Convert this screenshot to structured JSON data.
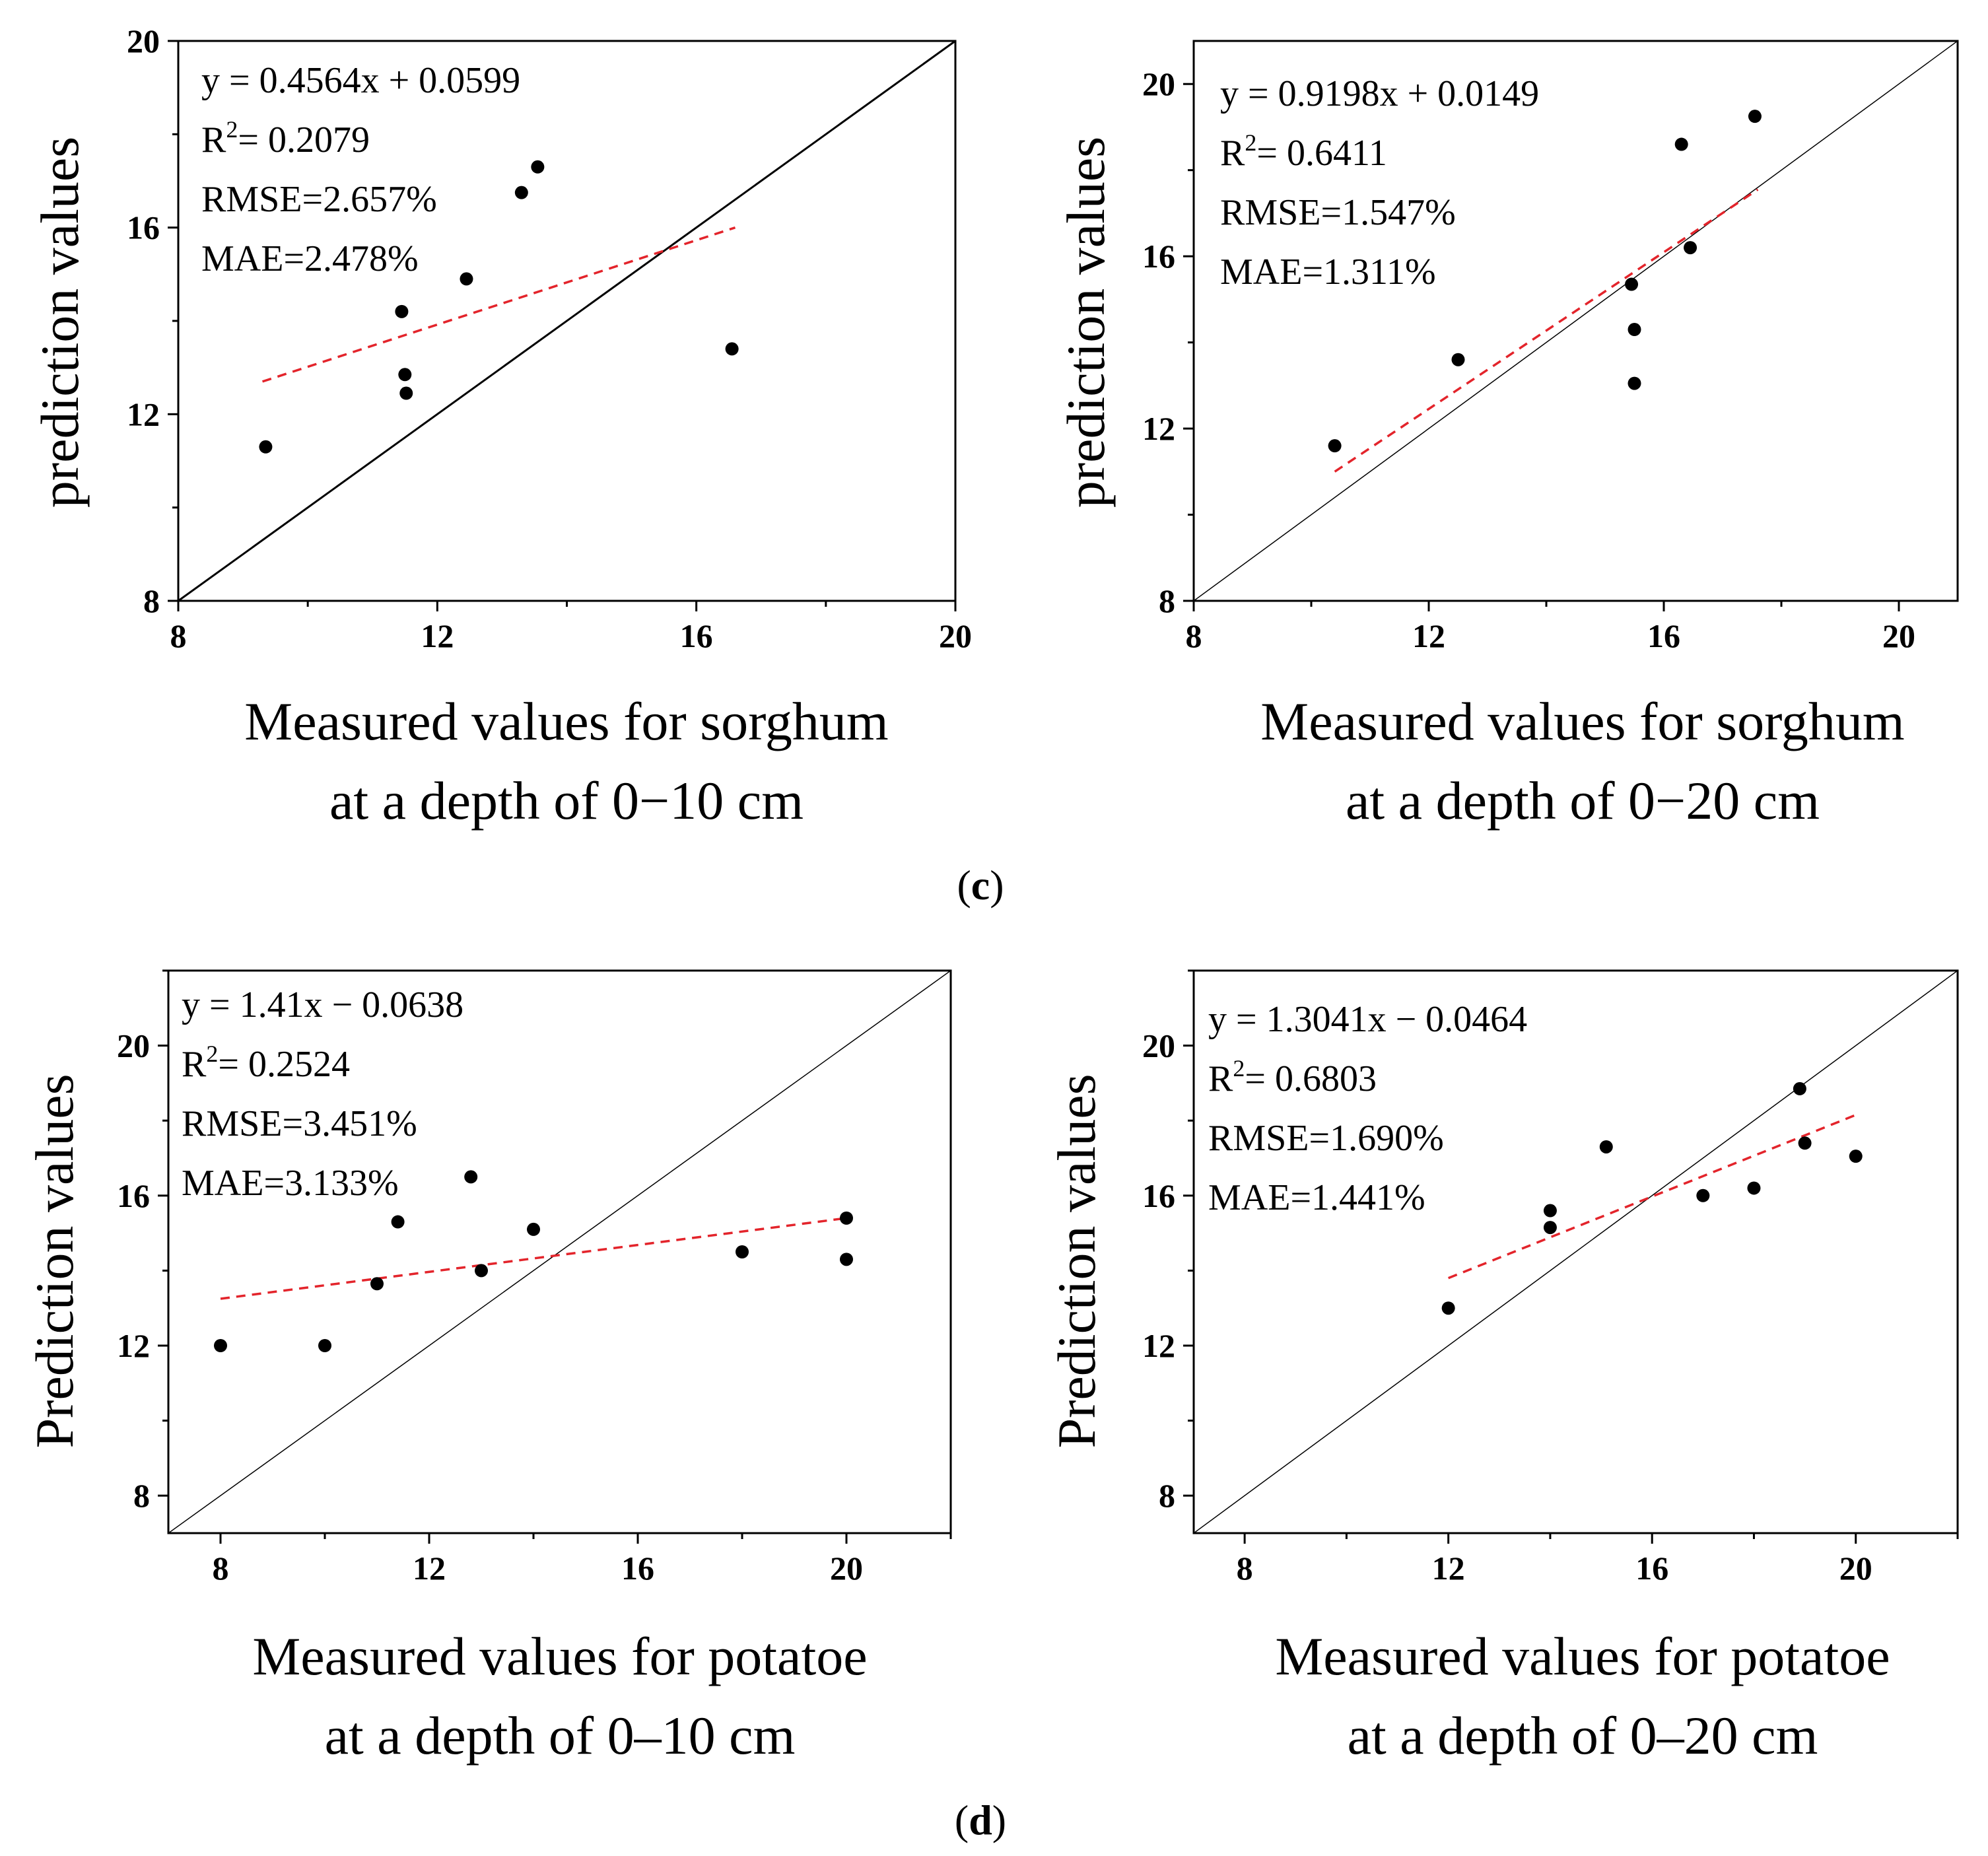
{
  "colors": {
    "fit_line": "#e3242b",
    "identity_line": "#000000",
    "points": "#000000"
  },
  "panel_labels": {
    "c": "(c)",
    "c_bold": "c",
    "d": "(d)",
    "d_bold": "d"
  },
  "chart_data": [
    {
      "type": "scatter",
      "id": "sorghum-0-10",
      "xlabel_lines": [
        "Measured values for sorghum",
        "at a depth of 0−10 cm"
      ],
      "ylabel": "prediction values",
      "xlim": [
        8,
        20
      ],
      "ylim": [
        8,
        20
      ],
      "xticks": [
        8,
        12,
        16,
        20
      ],
      "yticks": [
        8,
        12,
        16,
        20
      ],
      "identity_line": true,
      "fit_line": {
        "x": [
          9.3,
          16.6
        ],
        "y": [
          12.7,
          16.0
        ]
      },
      "points": [
        [
          9.35,
          11.3
        ],
        [
          11.45,
          14.2
        ],
        [
          11.5,
          12.85
        ],
        [
          11.52,
          12.45
        ],
        [
          12.45,
          14.9
        ],
        [
          13.3,
          16.75
        ],
        [
          13.55,
          17.3
        ],
        [
          16.55,
          13.4
        ]
      ],
      "stats": {
        "equation": "y = 0.4564x + 0.0599",
        "r2_prefix": "R",
        "r2_sup": "2",
        "r2_value": "= 0.2079",
        "rmse": "RMSE=2.657%",
        "mae": "MAE=2.478%"
      }
    },
    {
      "type": "scatter",
      "id": "sorghum-0-20",
      "xlabel_lines": [
        "Measured values for sorghum",
        "at a depth of 0−20 cm"
      ],
      "ylabel": "prediction values",
      "xlim": [
        8,
        21
      ],
      "ylim": [
        8,
        21
      ],
      "xticks": [
        8,
        12,
        16,
        20
      ],
      "yticks": [
        8,
        12,
        16,
        20
      ],
      "identity_line": true,
      "fit_line": {
        "x": [
          10.4,
          17.6
        ],
        "y": [
          11.0,
          17.55
        ]
      },
      "points": [
        [
          10.4,
          11.6
        ],
        [
          12.5,
          13.6
        ],
        [
          15.45,
          15.35
        ],
        [
          15.5,
          14.3
        ],
        [
          15.5,
          13.05
        ],
        [
          16.3,
          18.6
        ],
        [
          16.45,
          16.2
        ],
        [
          17.55,
          19.25
        ]
      ],
      "stats": {
        "equation": "y = 0.9198x + 0.0149",
        "r2_prefix": "R",
        "r2_sup": "2",
        "r2_value": "= 0.6411",
        "rmse": "RMSE=1.547%",
        "mae": "MAE=1.311%"
      }
    },
    {
      "type": "scatter",
      "id": "potatoe-0-10",
      "xlabel_lines": [
        "Measured values for potatoe",
        "at a depth of 0–10 cm"
      ],
      "ylabel": "Prediction values",
      "xlim": [
        7,
        22
      ],
      "ylim": [
        7,
        22
      ],
      "xticks": [
        8,
        12,
        16,
        20
      ],
      "yticks": [
        8,
        12,
        16,
        20
      ],
      "identity_line": true,
      "fit_line": {
        "x": [
          8,
          20
        ],
        "y": [
          13.25,
          15.4
        ]
      },
      "points": [
        [
          8,
          12
        ],
        [
          10,
          12
        ],
        [
          11,
          13.65
        ],
        [
          11.4,
          15.3
        ],
        [
          12.8,
          16.5
        ],
        [
          13,
          14
        ],
        [
          14,
          15.1
        ],
        [
          18,
          14.5
        ],
        [
          20,
          15.4
        ],
        [
          20,
          14.3
        ]
      ],
      "stats": {
        "equation": "y = 1.41x − 0.0638",
        "r2_prefix": "R",
        "r2_sup": "2",
        "r2_value": "= 0.2524",
        "rmse": "RMSE=3.451%",
        "mae": "MAE=3.133%"
      }
    },
    {
      "type": "scatter",
      "id": "potatoe-0-20",
      "xlabel_lines": [
        "Measured values for potatoe",
        "at a depth of 0–20 cm"
      ],
      "ylabel": "Prediction values",
      "xlim": [
        7,
        22
      ],
      "ylim": [
        7,
        22
      ],
      "xticks": [
        8,
        12,
        16,
        20
      ],
      "yticks": [
        8,
        12,
        16,
        20
      ],
      "identity_line": true,
      "fit_line": {
        "x": [
          12,
          20
        ],
        "y": [
          13.8,
          18.15
        ]
      },
      "points": [
        [
          12,
          13
        ],
        [
          14,
          15.6
        ],
        [
          14,
          15.15
        ],
        [
          15.1,
          17.3
        ],
        [
          17,
          16
        ],
        [
          18,
          16.2
        ],
        [
          18.9,
          18.85
        ],
        [
          19,
          17.4
        ],
        [
          20,
          17.05
        ]
      ],
      "stats": {
        "equation": "y = 1.3041x − 0.0464",
        "r2_prefix": "R",
        "r2_sup": "2",
        "r2_value": "= 0.6803",
        "rmse": "RMSE=1.690%",
        "mae": "MAE=1.441%"
      }
    }
  ]
}
